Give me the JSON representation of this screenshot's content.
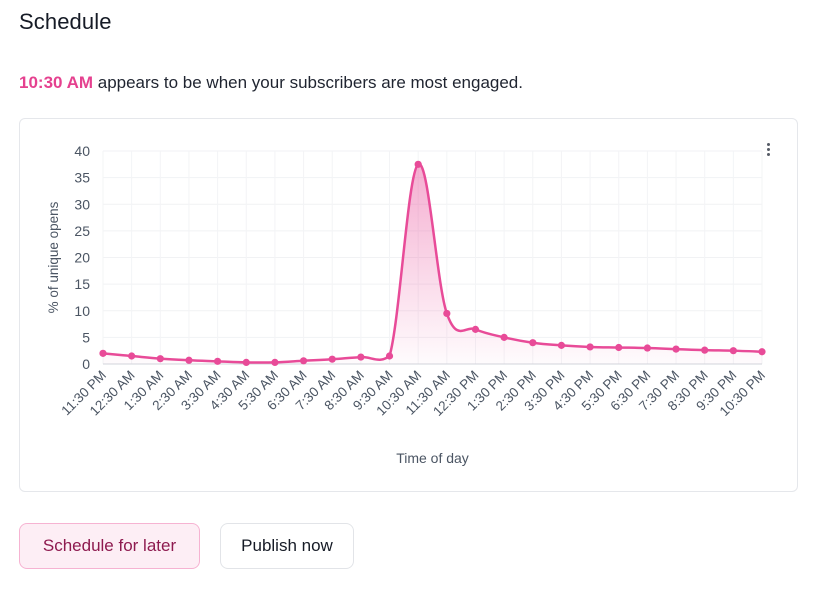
{
  "header": {
    "title": "Schedule"
  },
  "insight": {
    "highlight_time": "10:30 AM",
    "text": " appears to be when your subscribers are most engaged."
  },
  "chart_menu": {
    "icon": "vertical-ellipsis-icon"
  },
  "chart_data": {
    "type": "area",
    "title": "",
    "xlabel": "Time of day",
    "ylabel": "% of unique opens",
    "ylim": [
      0,
      40
    ],
    "yticks": [
      "0",
      "5",
      "10",
      "15",
      "20",
      "25",
      "30",
      "35",
      "40"
    ],
    "grid": true,
    "categories": [
      "11:30 PM",
      "12:30 AM",
      "1:30 AM",
      "2:30 AM",
      "3:30 AM",
      "4:30 AM",
      "5:30 AM",
      "6:30 AM",
      "7:30 AM",
      "8:30 AM",
      "9:30 AM",
      "10:30 AM",
      "11:30 AM",
      "12:30 PM",
      "1:30 PM",
      "2:30 PM",
      "3:30 PM",
      "4:30 PM",
      "5:30 PM",
      "6:30 PM",
      "7:30 PM",
      "8:30 PM",
      "9:30 PM",
      "10:30 PM"
    ],
    "series": [
      {
        "name": "% of unique opens",
        "values": [
          2.0,
          1.5,
          1.0,
          0.7,
          0.5,
          0.3,
          0.3,
          0.6,
          0.9,
          1.3,
          1.5,
          37.5,
          9.5,
          6.5,
          5.0,
          4.0,
          3.5,
          3.2,
          3.1,
          3.0,
          2.8,
          2.6,
          2.5,
          2.3
        ]
      }
    ],
    "color": "#e84b98"
  },
  "actions": {
    "schedule_later": "Schedule for later",
    "publish_now": "Publish now"
  }
}
